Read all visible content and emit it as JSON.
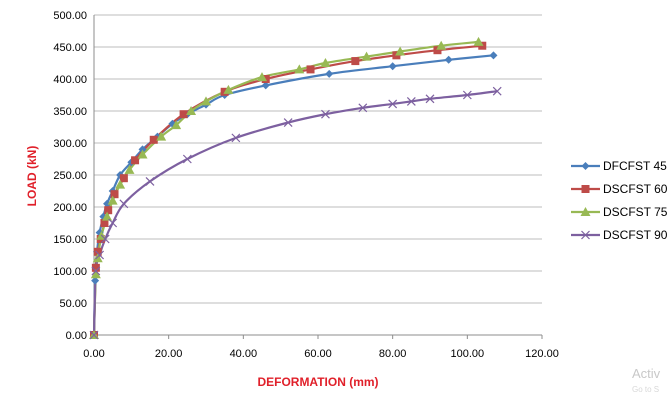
{
  "chart_data": {
    "type": "line",
    "xlabel": "DEFORMATION (mm)",
    "ylabel": "LOAD (kN)",
    "xlim": [
      0,
      120
    ],
    "ylim": [
      0,
      500
    ],
    "x_ticks": [
      "0.00",
      "20.00",
      "40.00",
      "60.00",
      "80.00",
      "100.00",
      "120.00"
    ],
    "y_ticks": [
      "0.00",
      "50.00",
      "100.00",
      "150.00",
      "200.00",
      "250.00",
      "300.00",
      "350.00",
      "400.00",
      "450.00",
      "500.00"
    ],
    "grid": "horizontal",
    "legend_position": "right",
    "series": [
      {
        "name": "DFCFST 45",
        "color": "#4a7ebb",
        "marker": "diamond",
        "points": [
          [
            0,
            0
          ],
          [
            0.3,
            85
          ],
          [
            0.8,
            130
          ],
          [
            1.5,
            160
          ],
          [
            2.5,
            185
          ],
          [
            3.5,
            205
          ],
          [
            5,
            225
          ],
          [
            7,
            250
          ],
          [
            10,
            270
          ],
          [
            13,
            290
          ],
          [
            17,
            310
          ],
          [
            21,
            330
          ],
          [
            25,
            345
          ],
          [
            30,
            360
          ],
          [
            35,
            375
          ],
          [
            46,
            390
          ],
          [
            63,
            408
          ],
          [
            80,
            420
          ],
          [
            95,
            430
          ],
          [
            107,
            437
          ]
        ]
      },
      {
        "name": "DSCFST 60",
        "color": "#be4b48",
        "marker": "square",
        "points": [
          [
            0,
            0
          ],
          [
            0.5,
            105
          ],
          [
            1,
            130
          ],
          [
            1.8,
            150
          ],
          [
            2.8,
            175
          ],
          [
            3.8,
            195
          ],
          [
            5.5,
            220
          ],
          [
            8,
            245
          ],
          [
            11,
            273
          ],
          [
            16,
            305
          ],
          [
            24,
            345
          ],
          [
            35,
            380
          ],
          [
            46,
            400
          ],
          [
            58,
            415
          ],
          [
            70,
            428
          ],
          [
            81,
            437
          ],
          [
            92,
            445
          ],
          [
            104,
            452
          ]
        ]
      },
      {
        "name": "DSCFST 75",
        "color": "#98b954",
        "marker": "triangle",
        "points": [
          [
            0,
            0
          ],
          [
            0.5,
            95
          ],
          [
            1,
            120
          ],
          [
            2,
            155
          ],
          [
            3.5,
            185
          ],
          [
            5,
            210
          ],
          [
            7,
            235
          ],
          [
            9.5,
            258
          ],
          [
            13,
            282
          ],
          [
            18,
            310
          ],
          [
            22,
            328
          ],
          [
            26,
            350
          ],
          [
            30,
            365
          ],
          [
            36,
            383
          ],
          [
            45,
            403
          ],
          [
            55,
            415
          ],
          [
            62,
            425
          ],
          [
            73,
            435
          ],
          [
            82,
            443
          ],
          [
            93,
            452
          ],
          [
            103,
            458
          ]
        ]
      },
      {
        "name": "DSCFST 90",
        "color": "#7d60a0",
        "marker": "x",
        "points": [
          [
            0,
            0
          ],
          [
            0.5,
            100
          ],
          [
            1.5,
            125
          ],
          [
            3,
            150
          ],
          [
            5,
            175
          ],
          [
            8,
            205
          ],
          [
            15,
            240
          ],
          [
            25,
            275
          ],
          [
            38,
            308
          ],
          [
            52,
            332
          ],
          [
            62,
            345
          ],
          [
            72,
            355
          ],
          [
            80,
            361
          ],
          [
            85,
            365
          ],
          [
            90,
            369
          ],
          [
            100,
            375
          ],
          [
            108,
            381
          ]
        ]
      }
    ]
  },
  "watermark": {
    "line1": "Activ",
    "line2": "Go to S"
  }
}
